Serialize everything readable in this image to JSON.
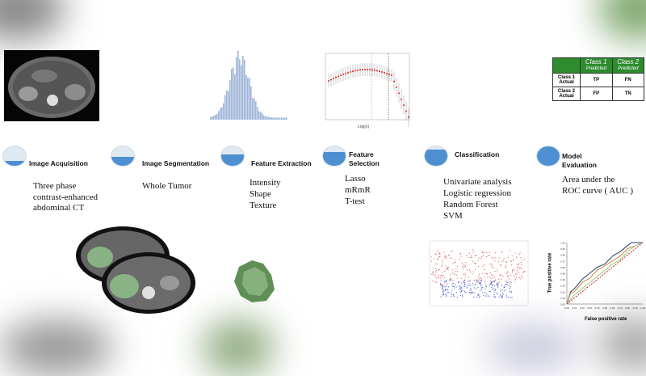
{
  "stages": [
    {
      "title": "Image Acquisition",
      "fill": 0.25,
      "description": [
        "Three phase",
        "contrast-enhanced",
        "abdominal CT"
      ]
    },
    {
      "title": "Image Segmentation",
      "fill": 0.45,
      "description": [
        "Whole Tumor"
      ]
    },
    {
      "title": "Feature Extraction",
      "fill": 0.6,
      "description": [
        "Intensity",
        "Shape",
        "Texture"
      ]
    },
    {
      "title": "Feature Selection",
      "fill": 0.7,
      "description": [
        "Lasso",
        "mRmR",
        "T-test"
      ]
    },
    {
      "title": "Classification",
      "fill": 0.85,
      "description": [
        "Univariate analysis",
        "Logistic regression",
        "Random Forest",
        "SVM"
      ]
    },
    {
      "title": "Model Evaluation",
      "fill": 1.0,
      "description": [
        "Area under the",
        "ROC curve ( AUC )"
      ]
    }
  ],
  "confusion_matrix": {
    "col_headers": [
      {
        "label": "Class 1",
        "sub": "Predicted"
      },
      {
        "label": "Class 2",
        "sub": "Predicted"
      }
    ],
    "rows": [
      {
        "label": "Class 1 Actual",
        "cells": [
          "TP",
          "FN"
        ]
      },
      {
        "label": "Class 2 Actual",
        "cells": [
          "FP",
          "TN"
        ]
      }
    ]
  },
  "roc": {
    "xlabel": "False positive rate",
    "ylabel": "True positive rate",
    "ticks": [
      "0.00",
      "0.10",
      "0.20",
      "0.30",
      "0.40",
      "0.50",
      "0.60",
      "0.70",
      "0.80",
      "0.90",
      "1.00"
    ]
  },
  "lasso": {
    "xlabel": "Log(λ)"
  },
  "colors": {
    "accent": "#4d8fd1",
    "table_header": "#2e8b2e",
    "roc_curves": [
      "#1f3f6e",
      "#d08a3c",
      "#9bd08f",
      "#cc2222"
    ]
  }
}
